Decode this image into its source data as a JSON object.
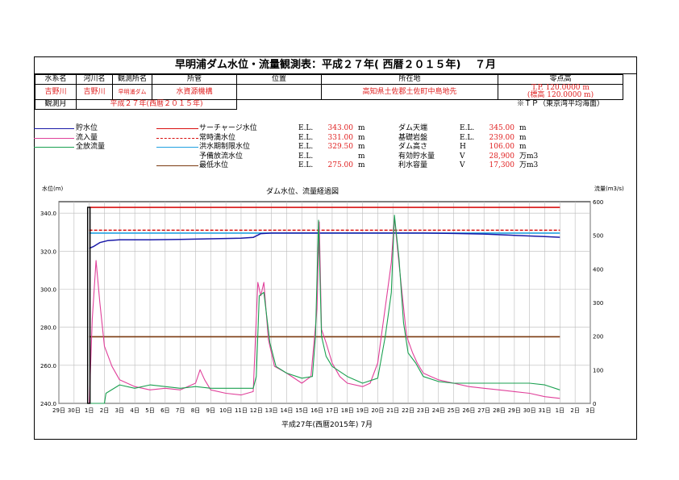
{
  "title": "早明浦ダム水位・流量観測表：平成２７年( 西暦２０１５年)　 ７月",
  "info": {
    "headers": [
      "水系名",
      "河川名",
      "観測所名",
      "所管",
      "位置",
      "所在地",
      "零点高"
    ],
    "values": [
      "吉野川",
      "吉野川",
      "早明浦ダム",
      "水資源機構",
      "",
      "高知県土佐郡土佐町中島地先"
    ],
    "zero_high_1": "T.P. 120.0000 m",
    "zero_high_2": "(標高 120.0000 m)",
    "obs_month_label": "観測月",
    "obs_month_value": "平成２７年(西暦２０１５年)",
    "tp_note": "※ＴＰ（東京湾平均海面）"
  },
  "legend_left": [
    {
      "label": "貯水位",
      "color": "#1a1aa8"
    },
    {
      "label": "流入量",
      "color": "#e0409a"
    },
    {
      "label": "全放流量",
      "color": "#1aa050"
    }
  ],
  "legend_mid": [
    {
      "label": "サーチャージ水位",
      "color": "#d81010",
      "dash": false,
      "el": "E.L.",
      "value": "343.00",
      "unit": "m"
    },
    {
      "label": "常時満水位",
      "color": "#d81010",
      "dash": true,
      "el": "E.L.",
      "value": "331.00",
      "unit": "m"
    },
    {
      "label": "洪水期制限水位",
      "color": "#20a0e0",
      "dash": false,
      "el": "E.L.",
      "value": "329.50",
      "unit": "m"
    },
    {
      "label": "予備放流水位",
      "color": "#ffffff",
      "dash": false,
      "el": "E.L.",
      "value": "",
      "unit": "m"
    },
    {
      "label": "最低水位",
      "color": "#7a3a10",
      "dash": false,
      "el": "E.L.",
      "value": "275.00",
      "unit": "m"
    }
  ],
  "legend_right": [
    {
      "label": "ダム天端",
      "el": "E.L.",
      "value": "345.00",
      "unit": "m"
    },
    {
      "label": "基礎岩盤",
      "el": "E.L.",
      "value": "239.00",
      "unit": "m"
    },
    {
      "label": "ダム高さ",
      "el": "H",
      "value": "106.00",
      "unit": "m"
    },
    {
      "label": "有効貯水量",
      "el": "V",
      "value": "28,900",
      "unit": "万m3"
    },
    {
      "label": "利水容量",
      "el": "V",
      "value": "17,300",
      "unit": "万m3"
    }
  ],
  "chart_data": {
    "type": "line",
    "title": "ダム水位、流量経過図",
    "y_left_label": "水位(m)",
    "y_right_label": "流量(m3/s)",
    "xlabel": "平成27年(西暦2015年) 7月",
    "x_ticks": [
      "29日",
      "30日",
      "1日",
      "2日",
      "3日",
      "4日",
      "5日",
      "6日",
      "7日",
      "8日",
      "9日",
      "10日",
      "11日",
      "12日",
      "13日",
      "14日",
      "15日",
      "16日",
      "17日",
      "18日",
      "19日",
      "20日",
      "21日",
      "22日",
      "23日",
      "24日",
      "25日",
      "26日",
      "27日",
      "28日",
      "29日",
      "30日",
      "31日",
      "1日",
      "2日",
      "3日"
    ],
    "y_left_ticks": [
      "240.0",
      "260.0",
      "280.0",
      "300.0",
      "320.0",
      "340.0"
    ],
    "y_right_ticks": [
      "0",
      "100",
      "200",
      "300",
      "400",
      "500",
      "600"
    ],
    "ylim_left": [
      240,
      346
    ],
    "ylim_right": [
      0,
      600
    ],
    "reference_lines": [
      {
        "name": "サーチャージ水位",
        "value": 343.0,
        "color": "#d81010",
        "dash": false
      },
      {
        "name": "常時満水位",
        "value": 331.0,
        "color": "#d81010",
        "dash": true
      },
      {
        "name": "洪水期制限水位",
        "value": 329.5,
        "color": "#20a0e0",
        "dash": false
      },
      {
        "name": "最低水位",
        "value": 275.0,
        "color": "#7a3a10",
        "dash": false
      }
    ],
    "series": [
      {
        "name": "貯水位",
        "axis": "left",
        "color": "#1a1aa8",
        "x": [
          2,
          2.3,
          2.7,
          3.2,
          4,
          6,
          8,
          10,
          12,
          12.8,
          13.3,
          14,
          16,
          18,
          20,
          22,
          24,
          26,
          28,
          30,
          32,
          33
        ],
        "y": [
          321.5,
          322.5,
          324.5,
          325.5,
          326,
          326,
          326.2,
          326.5,
          326.8,
          327.2,
          329.2,
          329.5,
          329.5,
          329.5,
          329.5,
          329.5,
          329.5,
          329.3,
          329,
          328.3,
          327.7,
          327.3
        ]
      },
      {
        "name": "流入量",
        "axis": "right",
        "color": "#e0409a",
        "x": [
          2,
          2.2,
          2.45,
          2.7,
          3,
          3.5,
          4,
          5,
          6,
          7,
          8,
          9,
          9.3,
          9.6,
          10,
          11,
          12,
          12.8,
          13.1,
          13.3,
          13.5,
          13.8,
          14.2,
          14.6,
          15,
          16,
          16.6,
          17,
          17.15,
          17.3,
          17.6,
          18,
          18.5,
          19,
          20,
          20.5,
          21,
          21.3,
          21.6,
          21.9,
          22.1,
          22.3,
          22.6,
          22.9,
          23.3,
          23.6,
          24,
          24.5,
          25,
          26,
          27,
          28,
          29,
          30,
          31,
          32,
          33
        ],
        "y": [
          0,
          250,
          425,
          300,
          170,
          110,
          70,
          50,
          40,
          45,
          40,
          60,
          100,
          70,
          40,
          30,
          25,
          35,
          360,
          320,
          360,
          190,
          110,
          100,
          90,
          60,
          80,
          280,
          540,
          220,
          180,
          120,
          80,
          60,
          50,
          60,
          120,
          220,
          320,
          420,
          555,
          460,
          330,
          200,
          150,
          120,
          90,
          80,
          70,
          60,
          50,
          45,
          40,
          35,
          30,
          20,
          15
        ]
      },
      {
        "name": "全放流量",
        "axis": "right",
        "color": "#1aa050",
        "x": [
          2,
          3,
          3.1,
          4,
          5,
          6,
          7,
          8,
          9,
          10,
          11,
          12,
          12.8,
          13,
          13.2,
          13.5,
          13.9,
          14.3,
          15,
          16,
          16.7,
          16.9,
          17.1,
          17.3,
          17.6,
          18,
          19,
          20,
          21,
          21.5,
          21.9,
          22.1,
          22.4,
          22.7,
          23,
          23.5,
          24,
          25,
          26,
          27,
          28,
          29,
          30,
          31,
          32,
          33
        ],
        "y": [
          0,
          0,
          30,
          55,
          45,
          55,
          50,
          45,
          50,
          45,
          45,
          45,
          45,
          80,
          320,
          330,
          180,
          110,
          90,
          75,
          80,
          200,
          545,
          200,
          140,
          110,
          80,
          60,
          75,
          200,
          330,
          560,
          430,
          240,
          150,
          120,
          80,
          65,
          60,
          60,
          60,
          60,
          60,
          60,
          55,
          40
        ]
      }
    ],
    "vertical_marker_x": 2
  }
}
